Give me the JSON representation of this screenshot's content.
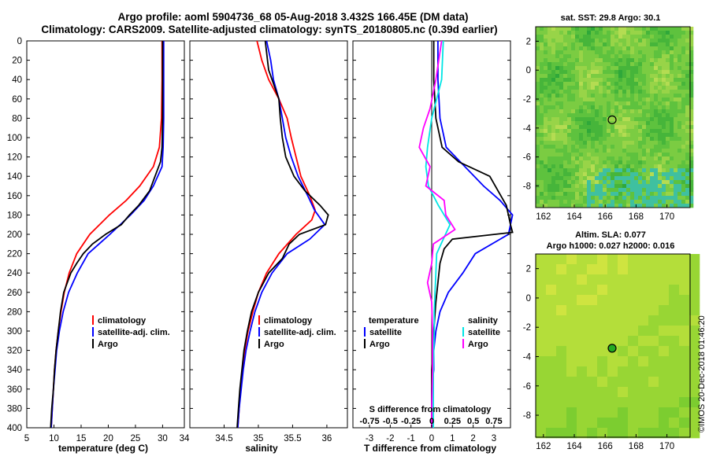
{
  "header": {
    "line1": "Argo profile: aoml 5904736_68 05-Aug-2018 3.432S 166.45E (DM data)",
    "line2": "Climatology: CARS2009. Satellite-adjusted climatology: synTS_20180805.nc (0.39d earlier)"
  },
  "credit": "©IMOS 20-Dec-2018 01:46:20",
  "colors": {
    "climatology": "#ff0000",
    "satellite": "#0000ff",
    "argo": "#000000",
    "sat_salinity": "#00e5e5",
    "argo_salinity": "#ff00ff"
  },
  "chart_data": [
    {
      "type": "line",
      "name": "temperature-profile",
      "xlabel": "temperature (deg C)",
      "ylabel": "",
      "xlim": [
        5,
        34
      ],
      "ylim": [
        400,
        0
      ],
      "xticks": [
        5,
        10,
        15,
        20,
        25,
        30,
        34
      ],
      "xtick_labels": [
        "5",
        "10",
        "15",
        "20",
        "25",
        "30",
        "34"
      ],
      "yticks": [
        0,
        20,
        40,
        60,
        80,
        100,
        120,
        140,
        160,
        180,
        200,
        220,
        240,
        260,
        280,
        300,
        320,
        340,
        360,
        380,
        400
      ],
      "legend": [
        "climatology",
        "satellite-adj. clim.",
        "Argo"
      ],
      "series": [
        {
          "name": "climatology",
          "color": "#ff0000",
          "depth": [
            0,
            40,
            80,
            110,
            130,
            150,
            165,
            180,
            200,
            220,
            240,
            260,
            280,
            300,
            320,
            340,
            360,
            380,
            400
          ],
          "values": [
            29.9,
            29.9,
            29.8,
            29.4,
            28.3,
            25.8,
            23.3,
            20.2,
            16.6,
            14.2,
            12.8,
            11.9,
            11.3,
            10.8,
            10.4,
            10.1,
            9.9,
            9.7,
            9.5
          ]
        },
        {
          "name": "satellite-adj. clim.",
          "color": "#0000ff",
          "depth": [
            0,
            40,
            80,
            110,
            130,
            150,
            165,
            180,
            200,
            220,
            240,
            260,
            280,
            300,
            320,
            340,
            360,
            380,
            400
          ],
          "values": [
            30.2,
            30.2,
            30.2,
            30.1,
            29.9,
            28.3,
            26.6,
            24.1,
            20.3,
            16.3,
            14.3,
            12.7,
            11.7,
            11.0,
            10.5,
            10.2,
            9.9,
            9.7,
            9.5
          ]
        },
        {
          "name": "Argo",
          "color": "#000000",
          "depth": [
            0,
            40,
            80,
            110,
            125,
            140,
            155,
            170,
            180,
            190,
            200,
            210,
            220,
            230,
            240,
            260,
            280,
            300,
            320,
            340,
            360,
            380,
            400
          ],
          "values": [
            30.0,
            30.0,
            30.0,
            29.9,
            29.6,
            28.6,
            27.6,
            25.6,
            23.9,
            22.4,
            19.5,
            17.1,
            15.4,
            14.2,
            13.1,
            11.8,
            11.2,
            10.8,
            10.4,
            10.1,
            9.9,
            9.6,
            9.4
          ]
        }
      ]
    },
    {
      "type": "line",
      "name": "salinity-profile",
      "xlabel": "salinity",
      "xlim": [
        34,
        36.3
      ],
      "ylim": [
        400,
        0
      ],
      "xticks": [
        34.5,
        35,
        35.5,
        36
      ],
      "xtick_labels": [
        "34.5",
        "35",
        "35.5",
        "36"
      ],
      "legend": [
        "climatology",
        "satellite-adj. clim.",
        "Argo"
      ],
      "series": [
        {
          "name": "climatology",
          "color": "#ff0000",
          "depth": [
            0,
            20,
            40,
            60,
            80,
            100,
            120,
            140,
            160,
            175,
            185,
            200,
            220,
            240,
            260,
            280,
            300,
            320,
            340,
            360,
            380,
            400
          ],
          "values": [
            34.98,
            35.05,
            35.15,
            35.3,
            35.42,
            35.48,
            35.55,
            35.62,
            35.75,
            35.83,
            35.78,
            35.55,
            35.3,
            35.12,
            35.0,
            34.92,
            34.85,
            34.8,
            34.77,
            34.74,
            34.72,
            34.7
          ]
        },
        {
          "name": "satellite-adj. clim.",
          "color": "#0000ff",
          "depth": [
            0,
            20,
            40,
            60,
            80,
            100,
            120,
            140,
            160,
            175,
            190,
            205,
            220,
            240,
            260,
            280,
            300,
            320,
            340,
            360,
            380,
            400
          ],
          "values": [
            35.12,
            35.18,
            35.22,
            35.3,
            35.35,
            35.4,
            35.48,
            35.58,
            35.72,
            35.82,
            35.97,
            35.75,
            35.42,
            35.2,
            35.05,
            34.95,
            34.88,
            34.82,
            34.78,
            34.75,
            34.72,
            34.7
          ]
        },
        {
          "name": "Argo",
          "color": "#000000",
          "depth": [
            0,
            30,
            60,
            80,
            100,
            120,
            140,
            155,
            170,
            180,
            190,
            200,
            210,
            225,
            240,
            260,
            280,
            300,
            320,
            340,
            360,
            380,
            400
          ],
          "values": [
            35.1,
            35.15,
            35.3,
            35.32,
            35.35,
            35.4,
            35.52,
            35.68,
            35.9,
            36.02,
            35.98,
            35.6,
            35.45,
            35.35,
            35.15,
            35.0,
            34.9,
            34.84,
            34.79,
            34.76,
            34.73,
            34.71,
            34.69
          ]
        }
      ]
    },
    {
      "type": "line",
      "name": "difference-profile",
      "xlabel": "T difference from climatology",
      "xlabel_top": "S difference from climatology",
      "xlim": [
        -3.8,
        3.8
      ],
      "ylim": [
        400,
        0
      ],
      "xticks": [
        -3,
        -2,
        -1,
        0,
        1,
        2,
        3
      ],
      "xtick_labels": [
        "-3",
        "-2",
        "-1",
        "0",
        "1",
        "2",
        "3"
      ],
      "stick_labels": [
        "-0.75",
        "-0.5",
        "-0.25",
        "0",
        "0.25",
        "0.5",
        "0.75"
      ],
      "legend_temperature": {
        "heading": "temperature",
        "items": [
          "satellite",
          "Argo"
        ]
      },
      "legend_salinity": {
        "heading": "salinity",
        "items": [
          "satellite",
          "Argo"
        ]
      },
      "series": [
        {
          "name": "T satellite",
          "color": "#0000ff",
          "depth": [
            0,
            40,
            80,
            110,
            130,
            150,
            165,
            180,
            200,
            220,
            240,
            260,
            280,
            300,
            320,
            340,
            360,
            380,
            400
          ],
          "values": [
            0.3,
            0.3,
            0.4,
            0.7,
            1.6,
            2.5,
            3.3,
            3.9,
            3.7,
            2.1,
            1.5,
            0.8,
            0.4,
            0.2,
            0.1,
            0.1,
            0.0,
            0.0,
            0.0
          ]
        },
        {
          "name": "T Argo",
          "color": "#000000",
          "depth": [
            0,
            40,
            80,
            110,
            125,
            140,
            155,
            170,
            180,
            190,
            198,
            205,
            215,
            230,
            250,
            270,
            300,
            340,
            380,
            400
          ],
          "values": [
            0.1,
            0.1,
            0.2,
            0.5,
            1.3,
            2.8,
            3.2,
            3.6,
            3.7,
            3.8,
            3.9,
            1.0,
            0.6,
            0.4,
            0.3,
            0.2,
            0.1,
            0.0,
            0.0,
            0.0
          ]
        },
        {
          "name": "S satellite",
          "color": "#00e5e5",
          "depth": [
            0,
            40,
            80,
            110,
            130,
            150,
            170,
            190,
            205,
            220,
            240,
            260,
            280,
            300,
            340,
            380,
            400
          ],
          "values": [
            0.14,
            0.12,
            0.0,
            -0.05,
            -0.07,
            -0.04,
            0.08,
            0.22,
            0.14,
            0.06,
            0.05,
            0.04,
            0.03,
            0.03,
            0.02,
            0.02,
            0.02
          ]
        },
        {
          "name": "S Argo",
          "color": "#ff00ff",
          "depth": [
            0,
            40,
            70,
            90,
            110,
            130,
            150,
            165,
            180,
            195,
            210,
            230,
            250,
            270,
            300,
            340,
            380,
            400
          ],
          "values": [
            0.12,
            0.05,
            -0.02,
            -0.1,
            -0.15,
            -0.02,
            -0.07,
            0.15,
            0.17,
            0.28,
            0.02,
            0.0,
            -0.05,
            0.0,
            0.01,
            0.01,
            0.0,
            0.0
          ]
        }
      ]
    },
    {
      "type": "heatmap",
      "name": "sst-map",
      "title": "sat. SST: 29.8 Argo: 30.1",
      "xlim": [
        161.5,
        171.5
      ],
      "ylim": [
        -9.5,
        3
      ],
      "xticks": [
        162,
        164,
        166,
        168,
        170
      ],
      "xtick_labels": [
        "162",
        "164",
        "166",
        "168",
        "170"
      ],
      "yticks": [
        2,
        0,
        -2,
        -4,
        -6,
        -8
      ],
      "ytick_labels": [
        "2",
        "0",
        "-2",
        "-4",
        "-6",
        "-8"
      ],
      "float_position": [
        166.45,
        -3.432
      ]
    },
    {
      "type": "heatmap",
      "name": "sla-map",
      "title": "Altim. SLA: 0.077",
      "subtitle": "Argo h1000: 0.027 h2000: 0.016",
      "xlim": [
        161.5,
        171.5
      ],
      "ylim": [
        -9.5,
        3
      ],
      "xticks": [
        162,
        164,
        166,
        168,
        170
      ],
      "xtick_labels": [
        "162",
        "164",
        "166",
        "168",
        "170"
      ],
      "yticks": [
        2,
        0,
        -2,
        -4,
        -6,
        -8
      ],
      "ytick_labels": [
        "2",
        "0",
        "-2",
        "-4",
        "-6",
        "-8"
      ],
      "float_position": [
        166.45,
        -3.432
      ]
    }
  ]
}
